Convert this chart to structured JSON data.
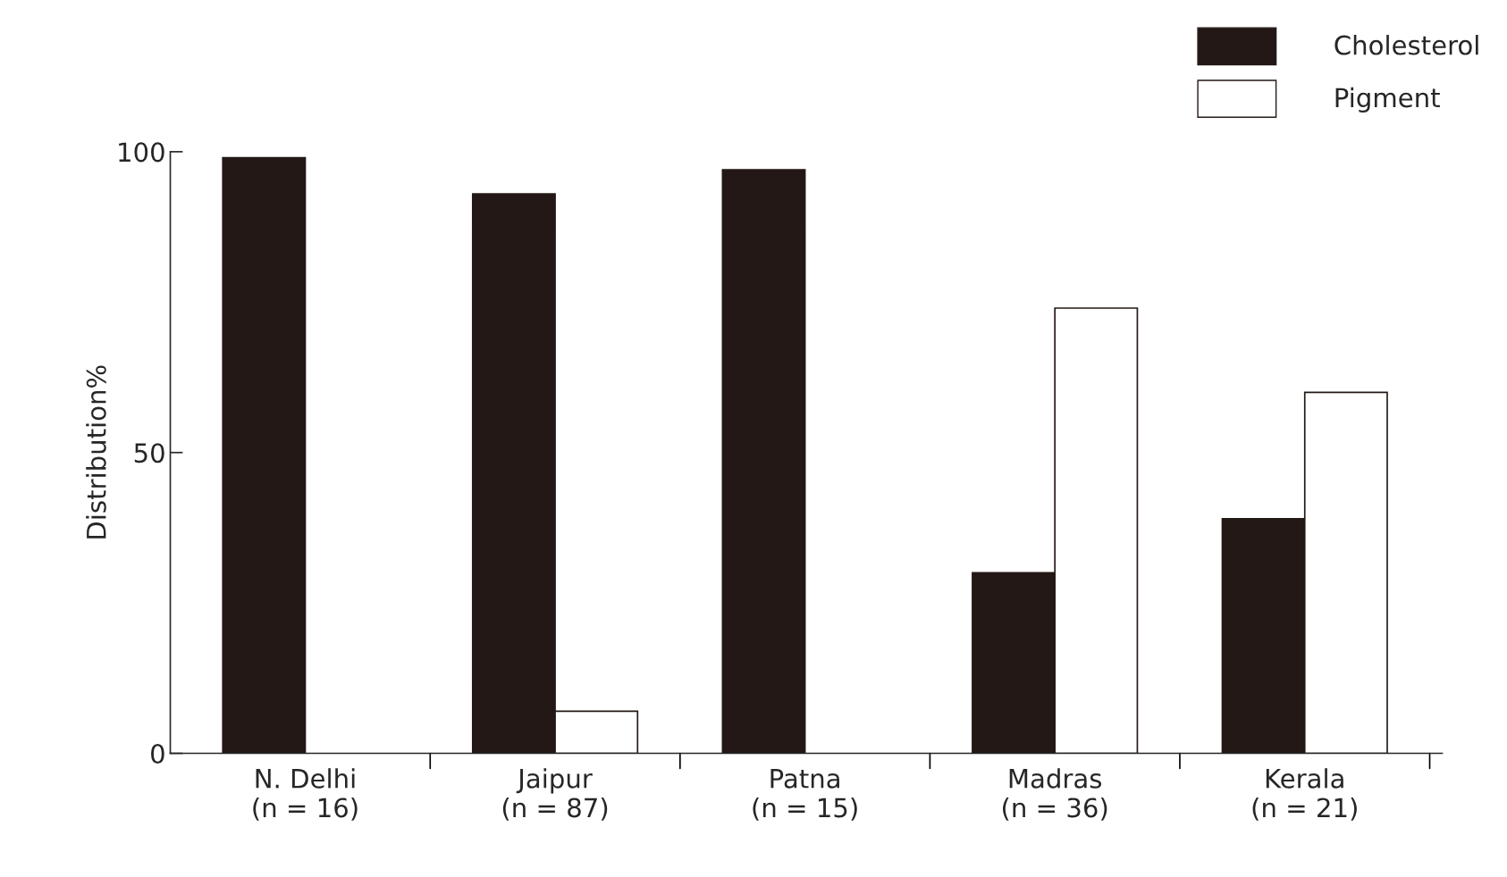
{
  "chart_data": {
    "type": "bar",
    "ylabel": "Distribution%",
    "categories": [
      "N. Delhi\n(n = 16)",
      "Jaipur\n(n = 87)",
      "Patna\n(n = 15)",
      "Madras\n(n = 36)",
      "Kerala\n(n = 21)"
    ],
    "series": [
      {
        "name": "Cholesterol",
        "color": "#231815",
        "values": [
          99,
          93,
          97,
          30,
          39
        ]
      },
      {
        "name": "Pigment",
        "color": "#ffffff",
        "values": [
          null,
          7,
          null,
          74,
          60
        ]
      }
    ],
    "ylim": [
      0,
      100
    ],
    "yticks": [
      0,
      50,
      100
    ],
    "grid": false,
    "legend": "top right"
  }
}
